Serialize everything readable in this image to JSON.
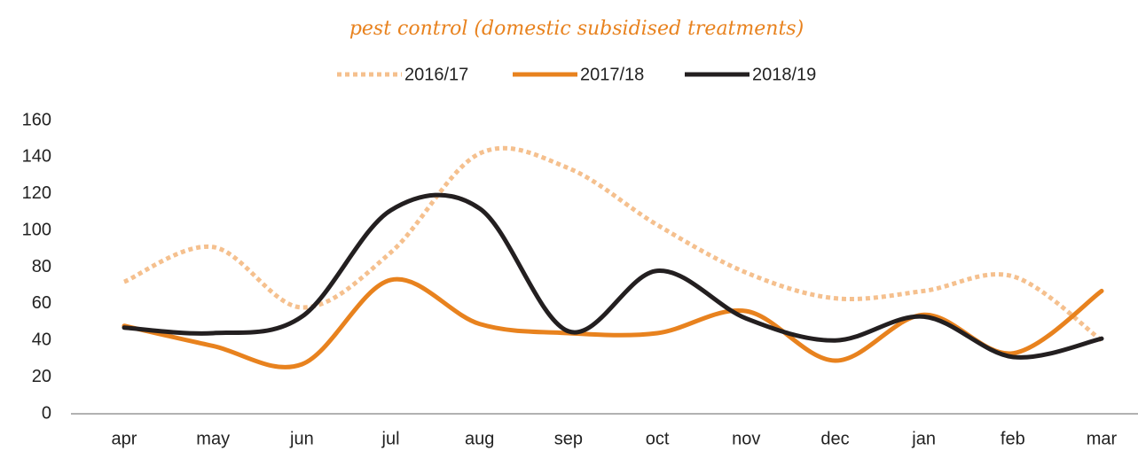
{
  "chart_data": {
    "type": "line",
    "title": "pest control (domestic subsidised treatments)",
    "title_color": "#e8821e",
    "categories": [
      "apr",
      "may",
      "jun",
      "jul",
      "aug",
      "sep",
      "oct",
      "nov",
      "dec",
      "jan",
      "feb",
      "mar"
    ],
    "series": [
      {
        "name": "2016/17",
        "color": "#f5c08e",
        "dash": "dotted",
        "values": [
          72,
          91,
          58,
          88,
          142,
          134,
          103,
          77,
          63,
          67,
          75,
          40
        ]
      },
      {
        "name": "2017/18",
        "color": "#e8821e",
        "dash": "solid",
        "values": [
          48,
          37,
          27,
          73,
          49,
          44,
          44,
          56,
          29,
          54,
          33,
          67
        ]
      },
      {
        "name": "2018/19",
        "color": "#231f20",
        "dash": "solid",
        "values": [
          47,
          44,
          53,
          111,
          112,
          45,
          78,
          52,
          40,
          53,
          31,
          41
        ]
      }
    ],
    "ylim": [
      0,
      160
    ],
    "yticks": [
      0,
      20,
      40,
      60,
      80,
      100,
      120,
      140,
      160
    ],
    "grid": false,
    "smooth": true,
    "legend": "top"
  }
}
